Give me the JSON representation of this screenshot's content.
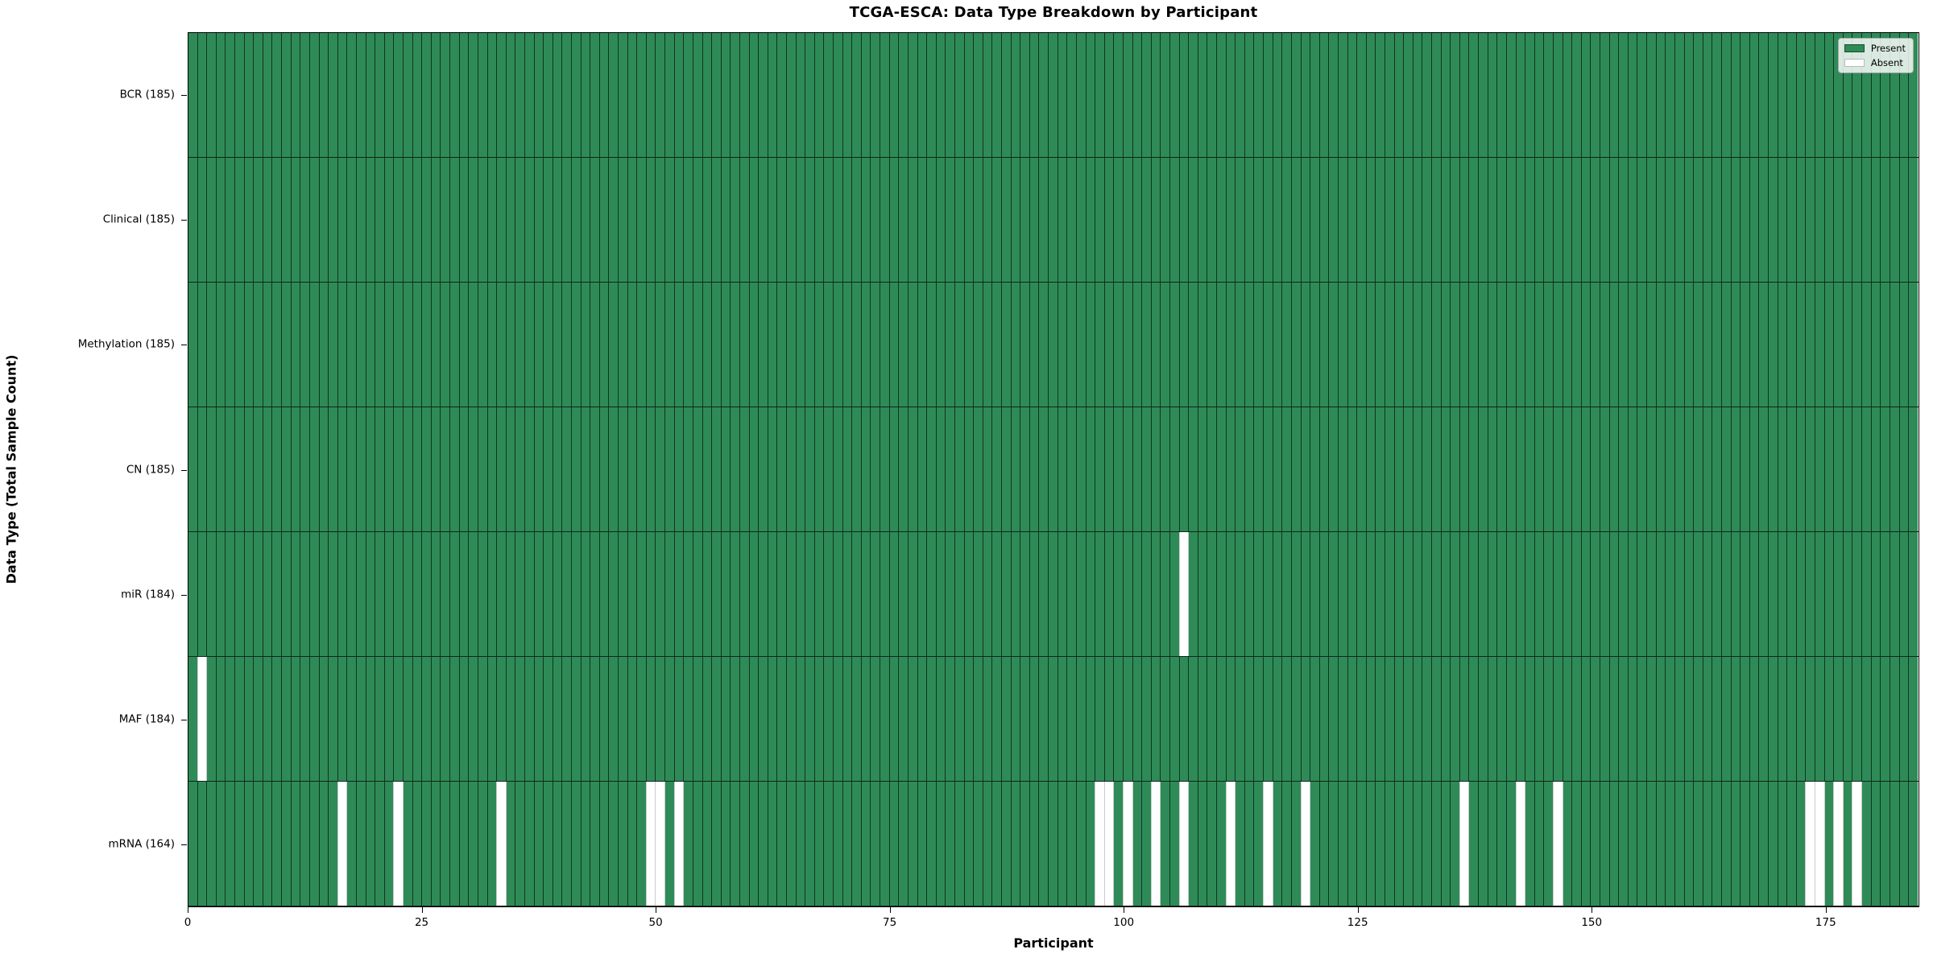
{
  "chart_data": {
    "type": "heatmap",
    "title": "TCGA-ESCA: Data Type Breakdown by Participant",
    "xlabel": "Participant",
    "ylabel": "Data Type (Total Sample Count)",
    "n_participants": 185,
    "x_range": [
      0,
      185
    ],
    "x_ticks": [
      0,
      25,
      50,
      75,
      100,
      125,
      150,
      175
    ],
    "grid": false,
    "legend_position": "upper right",
    "legend": {
      "present_label": "Present",
      "absent_label": "Absent"
    },
    "colors": {
      "present": "#2e8b57",
      "absent": "#ffffff",
      "edge": "#0d1f16"
    },
    "cell_values": {
      "present": 1,
      "absent": 0
    },
    "categories": [
      "BCR (185)",
      "Clinical (185)",
      "Methylation (185)",
      "CN (185)",
      "miR (184)",
      "MAF (184)",
      "mRNA (164)"
    ],
    "rows": [
      {
        "name": "BCR",
        "label": "BCR (185)",
        "total": 185,
        "absent": []
      },
      {
        "name": "Clinical",
        "label": "Clinical (185)",
        "total": 185,
        "absent": []
      },
      {
        "name": "Methylation",
        "label": "Methylation (185)",
        "total": 185,
        "absent": []
      },
      {
        "name": "CN",
        "label": "CN (185)",
        "total": 185,
        "absent": []
      },
      {
        "name": "miR",
        "label": "miR (184)",
        "total": 184,
        "absent": [
          107
        ]
      },
      {
        "name": "MAF",
        "label": "MAF (184)",
        "total": 184,
        "absent": [
          2
        ]
      },
      {
        "name": "mRNA",
        "label": "mRNA (164)",
        "total": 164,
        "absent": [
          17,
          23,
          34,
          50,
          51,
          53,
          98,
          99,
          101,
          104,
          107,
          112,
          116,
          120,
          137,
          143,
          147,
          174,
          175,
          177,
          179
        ]
      }
    ]
  }
}
